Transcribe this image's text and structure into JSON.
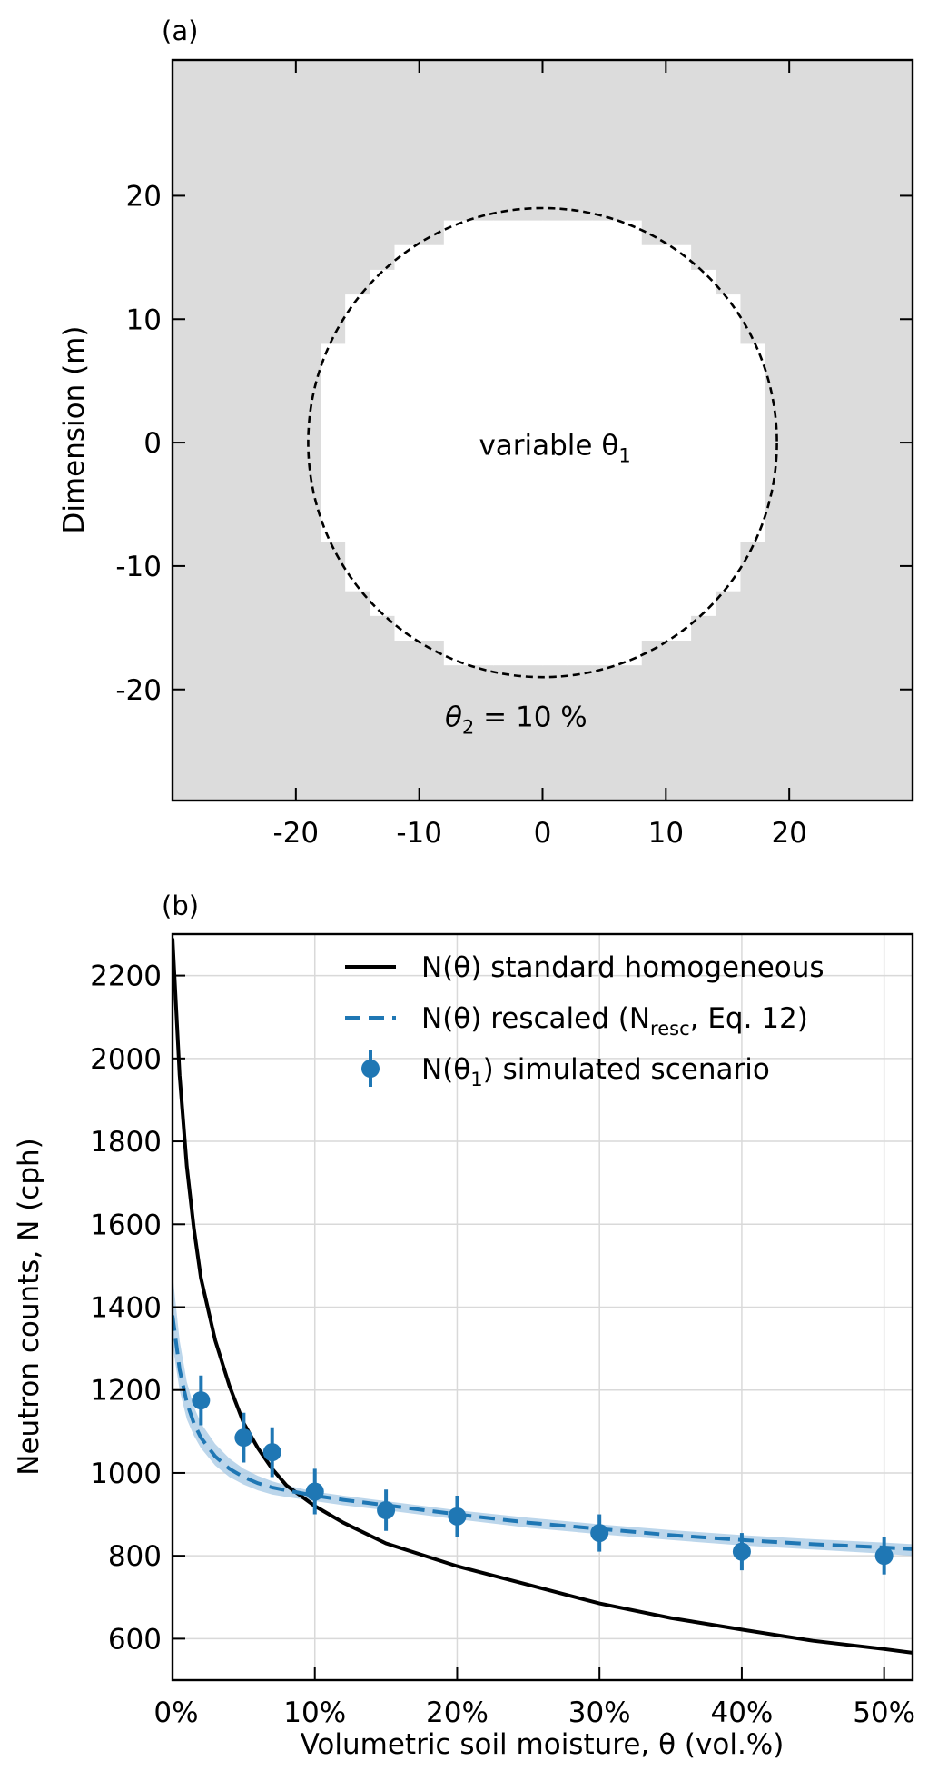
{
  "chart_data": [
    {
      "panel_label": "(a)",
      "type": "map",
      "ylabel": "Dimension (m)",
      "xlim": [
        -30,
        30
      ],
      "ylim": [
        -29,
        31
      ],
      "xticks": [
        -20,
        -10,
        0,
        10,
        20
      ],
      "xtick_labels": [
        "-20",
        "-10",
        "0",
        "10",
        "20"
      ],
      "yticks": [
        20,
        10,
        0,
        -10,
        -20
      ],
      "ytick_labels": [
        "20",
        "10",
        "0",
        "-10",
        "-20"
      ],
      "circle_radius": 19,
      "colors": {
        "outer": "#dcdcdc",
        "inner": "#ffffff",
        "circle": "#000000"
      },
      "inner_label": {
        "text": "variable θ",
        "sub": "1",
        "x": 1,
        "y": -1
      },
      "outer_label": {
        "text": "θ",
        "sub": "2",
        "rest": " = 10 %",
        "x": -3.5,
        "y": -23
      }
    },
    {
      "panel_label": "(b)",
      "type": "line",
      "xlabel": "Volumetric soil moisture, θ (vol.%)",
      "ylabel": "Neutron counts, N (cph)",
      "xlim": [
        0,
        52
      ],
      "ylim": [
        500,
        2300
      ],
      "xticks": [
        0,
        10,
        20,
        30,
        40,
        50
      ],
      "xtick_labels": [
        "0%",
        "10%",
        "20%",
        "30%",
        "40%",
        "50%"
      ],
      "yticks": [
        600,
        800,
        1000,
        1200,
        1400,
        1600,
        1800,
        2000,
        2200
      ],
      "ytick_labels": [
        "600",
        "800",
        "1000",
        "1200",
        "1400",
        "1600",
        "1800",
        "2000",
        "2200"
      ],
      "grid": true,
      "legend_position": "top-right",
      "legend": [
        {
          "pre": "N(θ) standard homogeneous",
          "sub": "",
          "post": ""
        },
        {
          "pre": "N(θ) rescaled (N",
          "sub": "resc",
          "post": ", Eq. 12)"
        },
        {
          "pre": "N(θ",
          "sub": "1",
          "post": ") simulated scenario"
        }
      ],
      "standard": {
        "x": [
          0,
          0.5,
          1,
          1.5,
          2,
          3,
          4,
          5,
          6,
          7,
          8,
          10,
          12,
          15,
          20,
          25,
          30,
          35,
          40,
          45,
          50,
          52
        ],
        "y": [
          2290,
          1960,
          1740,
          1590,
          1470,
          1320,
          1210,
          1120,
          1060,
          1010,
          970,
          920,
          880,
          830,
          775,
          730,
          685,
          650,
          622,
          595,
          575,
          566
        ],
        "color": "#000000"
      },
      "rescaled": {
        "x": [
          0,
          0.5,
          1,
          1.5,
          2,
          3,
          4,
          5,
          6,
          7,
          8,
          10,
          12,
          15,
          20,
          25,
          30,
          35,
          40,
          45,
          50,
          52
        ],
        "y": [
          1380,
          1250,
          1170,
          1120,
          1085,
          1040,
          1010,
          990,
          975,
          965,
          958,
          945,
          935,
          922,
          900,
          880,
          865,
          850,
          838,
          828,
          820,
          816
        ],
        "band_upper": [
          1480,
          1320,
          1220,
          1160,
          1120,
          1070,
          1035,
          1010,
          993,
          980,
          970,
          955,
          945,
          932,
          910,
          892,
          876,
          862,
          850,
          840,
          832,
          828
        ],
        "band_lower": [
          1310,
          1200,
          1130,
          1090,
          1060,
          1018,
          990,
          972,
          958,
          948,
          942,
          932,
          922,
          910,
          888,
          868,
          852,
          838,
          825,
          815,
          805,
          800
        ],
        "color": "#1f77b4",
        "band_color": "#a6c8e4"
      },
      "simulated": {
        "x": [
          2,
          5,
          7,
          10,
          15,
          20,
          30,
          40,
          50
        ],
        "y": [
          1175,
          1085,
          1050,
          955,
          910,
          895,
          855,
          810,
          800
        ],
        "err": [
          60,
          60,
          60,
          55,
          50,
          50,
          45,
          45,
          45
        ],
        "color": "#1f77b4"
      }
    }
  ]
}
